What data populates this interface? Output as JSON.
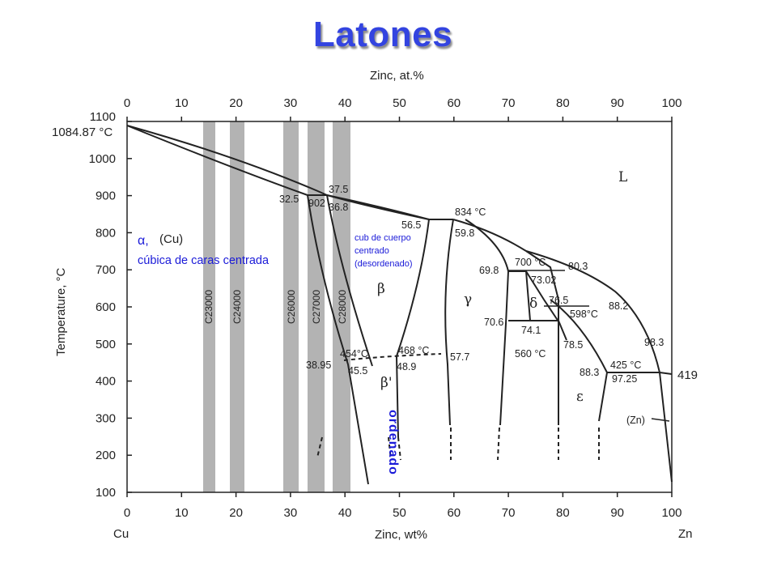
{
  "title": "Latones",
  "axes": {
    "top_label": "Zinc, at.%",
    "bottom_label": "Zinc, wt%",
    "y_label": "Temperature, °C",
    "left_end": "Cu",
    "right_end": "Zn",
    "x_ticks": [
      "0",
      "10",
      "20",
      "30",
      "40",
      "50",
      "60",
      "70",
      "80",
      "90",
      "100"
    ],
    "y_ticks": [
      "1100",
      "1000",
      "900",
      "800",
      "700",
      "600",
      "500",
      "400",
      "300",
      "200",
      "100"
    ]
  },
  "alloys": [
    "C23000",
    "C24000",
    "C26000",
    "C27000",
    "C28000"
  ],
  "phases": {
    "L": "L",
    "beta": "β",
    "gamma": "γ",
    "delta": "δ",
    "epsilon": "ε",
    "beta_prime": "β'",
    "cu": "(Cu)",
    "zn": "(Zn)"
  },
  "labels": {
    "cu_melt": "1084.87 °C",
    "l_325": "32.5",
    "l_902": "902",
    "l_375": "37.5",
    "l_368": "36.8",
    "l_565": "56.5",
    "l_834": "834 °C",
    "l_598": "59.8",
    "l_698": "69.8",
    "l_700": "700 °C",
    "l_803": "80.3",
    "l_7302": "73.02",
    "l_765": "76.5",
    "l_598c": "598°C",
    "l_882": "88.2",
    "l_706": "70.6",
    "l_741": "74.1",
    "l_785": "78.5",
    "l_560": "560 °C",
    "l_983": "98.3",
    "l_3895": "38.95",
    "l_454": "454°C",
    "l_455": "45.5",
    "l_468": "468 °C",
    "l_489": "48.9",
    "l_577": "57.7",
    "l_883": "88.3",
    "l_425": "425 °C",
    "l_9725": "97.25",
    "l_419": "419"
  },
  "annotations": {
    "alpha": "α,",
    "alpha_desc": "cúbica de caras centrada",
    "bcc_1": "cub de cuerpo",
    "bcc_2": "centrado",
    "bcc_3": "(desordenado)",
    "ordered": "ordenado"
  },
  "colors": {
    "title": "#3344e0",
    "annotation": "#1a1ad8",
    "alloy_band": "#b3b3b3"
  }
}
